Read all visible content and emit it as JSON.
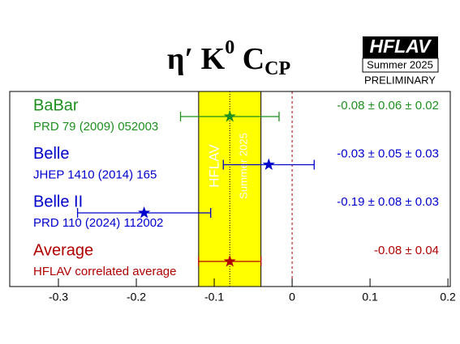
{
  "chart_data": {
    "type": "average",
    "title": {
      "main": "η′ K",
      "superscript": "0",
      "base": " C",
      "subscript": "CP"
    },
    "logo": {
      "name": "HFLAV",
      "edition": "Summer 2025",
      "status": "PRELIMINARY"
    },
    "watermark": {
      "name": "HFLAV",
      "edition": "Summer 2025"
    },
    "xlim": [
      -0.3625,
      0.203
    ],
    "xticks": [
      -0.3,
      -0.2,
      -0.1,
      0,
      0.1,
      0.2
    ],
    "band_color": "#ffff00",
    "measurements": [
      {
        "name": "BaBar",
        "reference": "PRD 79 (2009) 052003",
        "color": "#1f8f1f",
        "value": -0.08,
        "stat": 0.06,
        "syst": 0.02,
        "value_label": "-0.08 ± 0.06 ± 0.02"
      },
      {
        "name": "Belle",
        "reference": "JHEP 1410 (2014) 165",
        "color": "#0000cc",
        "value": -0.03,
        "stat": 0.05,
        "syst": 0.03,
        "value_label": "-0.03 ± 0.05 ± 0.03"
      },
      {
        "name": "Belle II",
        "reference": "PRD 110 (2024) 112002",
        "color": "#0000cc",
        "value": -0.19,
        "stat": 0.08,
        "syst": 0.03,
        "value_label": "-0.19 ± 0.08 ± 0.03"
      }
    ],
    "average": {
      "name": "Average",
      "reference": "HFLAV correlated average",
      "color": "#b00000",
      "value": -0.08,
      "error": 0.04,
      "value_label": "-0.08 ± 0.04"
    }
  }
}
